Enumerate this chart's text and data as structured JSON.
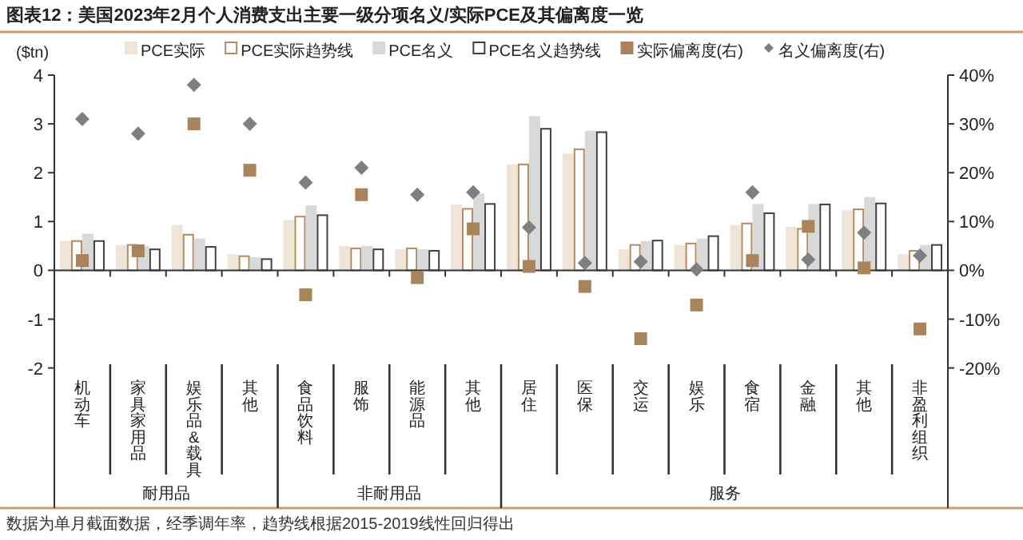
{
  "chart_data": {
    "type": "bar",
    "title": "图表12：美国2023年2月个人消费支出主要一级分项名义/实际PCE及其偏离度一览",
    "ylabel": "($tn)",
    "categories": [
      "机动车",
      "家具家用品",
      "娱乐品&载具",
      "其他",
      "食品饮料",
      "服饰",
      "能源品",
      "其他",
      "居住",
      "医保",
      "交运",
      "娱乐",
      "食宿",
      "金融",
      "其他",
      "非盈利组织"
    ],
    "series": [
      {
        "name": "PCE实际",
        "color": "#efe4d8",
        "values": [
          0.6,
          0.52,
          0.93,
          0.33,
          1.03,
          0.5,
          0.43,
          1.35,
          2.17,
          2.39,
          0.43,
          0.52,
          0.93,
          0.89,
          1.23,
          0.33
        ]
      },
      {
        "name": "PCE实际趋势线",
        "color": "#b58a5e",
        "line_style": "solid",
        "values": [
          0.6,
          0.52,
          0.73,
          0.29,
          1.1,
          0.45,
          0.45,
          1.26,
          2.17,
          2.48,
          0.52,
          0.55,
          0.96,
          0.85,
          1.25,
          0.4
        ]
      },
      {
        "name": "PCE名义",
        "color": "#d9d9d9",
        "values": [
          0.75,
          0.5,
          0.65,
          0.27,
          1.33,
          0.5,
          0.43,
          1.57,
          3.16,
          2.86,
          0.6,
          0.65,
          1.36,
          1.36,
          1.5,
          0.52
        ]
      },
      {
        "name": "PCE名义趋势线",
        "color": "#404040",
        "line_style": "solid",
        "values": [
          0.6,
          0.43,
          0.48,
          0.23,
          1.13,
          0.43,
          0.4,
          1.36,
          2.9,
          2.83,
          0.61,
          0.7,
          1.17,
          1.35,
          1.37,
          0.52
        ]
      },
      {
        "name": "实际偏离度(右)",
        "type": "scatter",
        "marker": "square",
        "axis": "y2",
        "color": "#a9835a",
        "values": [
          2,
          4,
          30,
          20.5,
          -5,
          15.5,
          -1.5,
          8.5,
          0.8,
          -3.3,
          -14,
          -7.1,
          2,
          9,
          0.5,
          -12
        ]
      },
      {
        "name": "名义偏离度(右)",
        "type": "scatter",
        "marker": "diamond",
        "axis": "y2",
        "color": "#7f7f7f",
        "values": [
          31,
          28,
          38,
          30,
          18,
          21,
          15.5,
          16,
          8.8,
          1.5,
          1.8,
          0.2,
          16,
          2.2,
          7.7,
          3
        ]
      }
    ],
    "ylim": [
      -4.87,
      4
    ],
    "yticks": [
      -2,
      -1,
      0,
      1,
      2,
      3,
      4
    ],
    "y2lim": [
      -48.7,
      40
    ],
    "y2ticks": [
      {
        "value": -20,
        "label": "-20%"
      },
      {
        "value": -10,
        "label": "-10%"
      },
      {
        "value": 0,
        "label": "0%"
      },
      {
        "value": 10,
        "label": "10%"
      },
      {
        "value": 20,
        "label": "20%"
      },
      {
        "value": 30,
        "label": "30%"
      },
      {
        "value": 40,
        "label": "40%"
      }
    ],
    "legend": "top",
    "annotations": [
      "耐用品",
      "非耐用品",
      "服务",
      "数据为单月截面数据，经季调年率，趋势线根据2015-2019线性回归得出"
    ]
  }
}
